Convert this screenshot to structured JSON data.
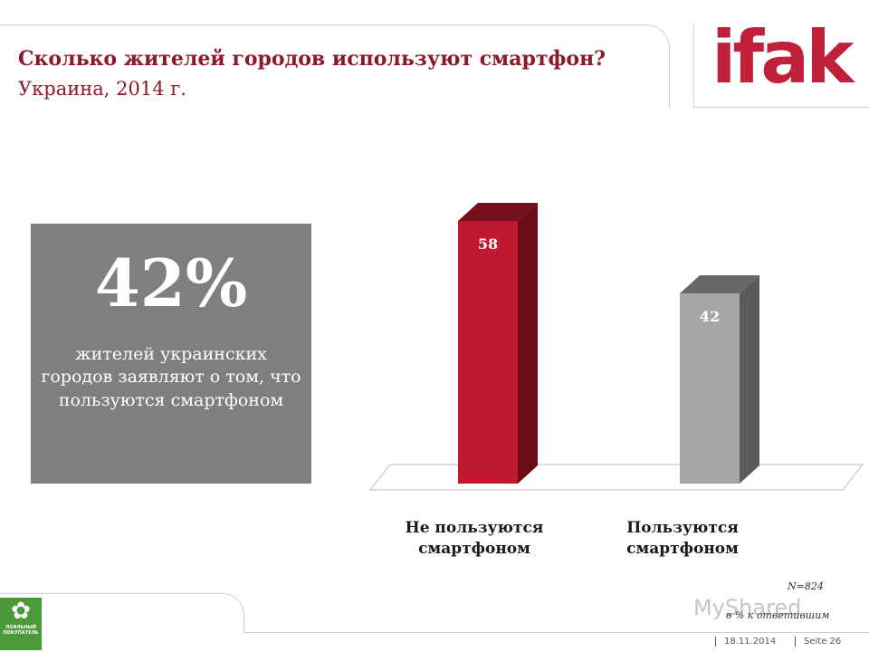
{
  "header": {
    "title": "Сколько жителей городов используют смартфон?",
    "subtitle": "Украина, 2014 г.",
    "logo_text": "ifak"
  },
  "highlight": {
    "value": "42%",
    "text": "жителей украинских городов заявляют о том, что пользуются смартфоном"
  },
  "chart_data": {
    "type": "bar",
    "categories": [
      "Не пользуются смартфоном",
      "Пользуются смартфоном"
    ],
    "category_lines": [
      [
        "Не пользуются",
        "смартфоном"
      ],
      [
        "Пользуются",
        "смартфоном"
      ]
    ],
    "values": [
      58,
      42
    ],
    "data_labels": [
      "58",
      "42"
    ],
    "colors": [
      "#c0182e",
      "#a6a6a6"
    ],
    "style": "3d",
    "ylim": [
      0,
      58
    ]
  },
  "notes": {
    "sample": "N=824",
    "unit": "в % к ответившим"
  },
  "watermark": "MyShared",
  "footer_badge": {
    "line1": "ЛОЯЛЬНЫЙ",
    "line2": "ПОКУПАТЕЛЬ"
  },
  "footer": {
    "date": "18.11.2014",
    "page": "Seite  26"
  }
}
